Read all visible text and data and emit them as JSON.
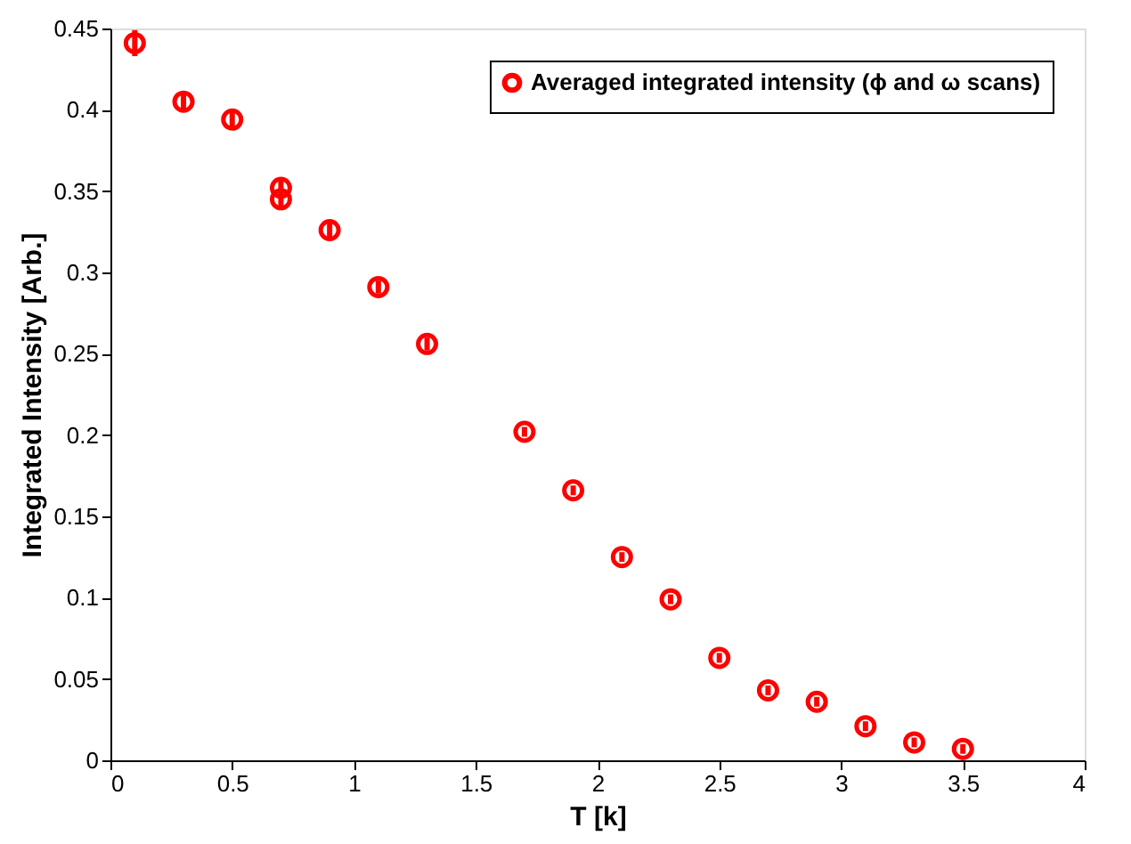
{
  "chart_data": {
    "type": "scatter",
    "xlabel": "T [k]",
    "ylabel": "Integrated Intensity [Arb.]",
    "x": [
      0.1,
      0.3,
      0.5,
      0.7,
      0.7,
      0.9,
      1.1,
      1.3,
      1.7,
      1.9,
      2.1,
      2.3,
      2.5,
      2.7,
      2.9,
      3.1,
      3.3,
      3.5
    ],
    "series": [
      {
        "name": "Averaged integrated intensity (ϕ and ω scans)",
        "color": "#ff0000",
        "values": [
          0.441,
          0.405,
          0.394,
          0.352,
          0.345,
          0.326,
          0.291,
          0.256,
          0.202,
          0.166,
          0.125,
          0.099,
          0.063,
          0.043,
          0.036,
          0.021,
          0.011,
          0.007
        ],
        "errors": [
          0.008,
          0.006,
          0.006,
          0.005,
          0.005,
          0.005,
          0.004,
          0.004,
          0.003,
          0.003,
          0.003,
          0.003,
          0.003,
          0.003,
          0.003,
          0.003,
          0.003,
          0.003
        ]
      }
    ],
    "xlim": [
      0,
      4
    ],
    "xticks": [
      0,
      0.5,
      1,
      1.5,
      2,
      2.5,
      3,
      3.5,
      4
    ],
    "ylim": [
      0,
      0.45
    ],
    "yticks": [
      0,
      0.05,
      0.1,
      0.15,
      0.2,
      0.25,
      0.3,
      0.35,
      0.4,
      0.45
    ],
    "marker": "circle",
    "legend": "top right",
    "grid": false
  }
}
